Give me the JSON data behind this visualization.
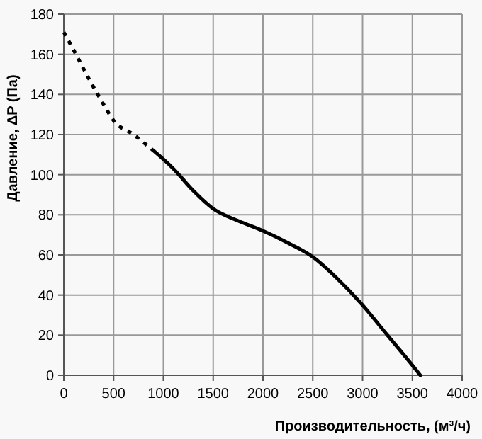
{
  "chart_data": {
    "type": "line",
    "xlabel": "Производительность, (м³/ч)",
    "ylabel": "Давление, ΔP (Па)",
    "xlim": [
      0,
      4000
    ],
    "xticks": [
      0,
      500,
      1000,
      1500,
      2000,
      2500,
      3000,
      3500,
      4000
    ],
    "ylim": [
      0,
      180
    ],
    "yticks": [
      0,
      20,
      40,
      60,
      80,
      100,
      120,
      140,
      160,
      180
    ],
    "grid": true,
    "marker": "none",
    "series": [
      {
        "color": "#000000",
        "line_style": "dotted",
        "x": [
          0,
          100,
          250,
          400,
          500,
          700,
          900
        ],
        "values": [
          171,
          162,
          148,
          135,
          127,
          120,
          112
        ]
      },
      {
        "color": "#000000",
        "line_style": "solid",
        "x": [
          900,
          1100,
          1300,
          1500,
          1750,
          2000,
          2250,
          2500,
          2750,
          3000,
          3250,
          3500,
          3580
        ],
        "values": [
          112,
          103,
          92,
          83,
          77,
          72,
          66,
          59,
          48,
          35,
          20,
          5,
          0
        ]
      }
    ]
  }
}
